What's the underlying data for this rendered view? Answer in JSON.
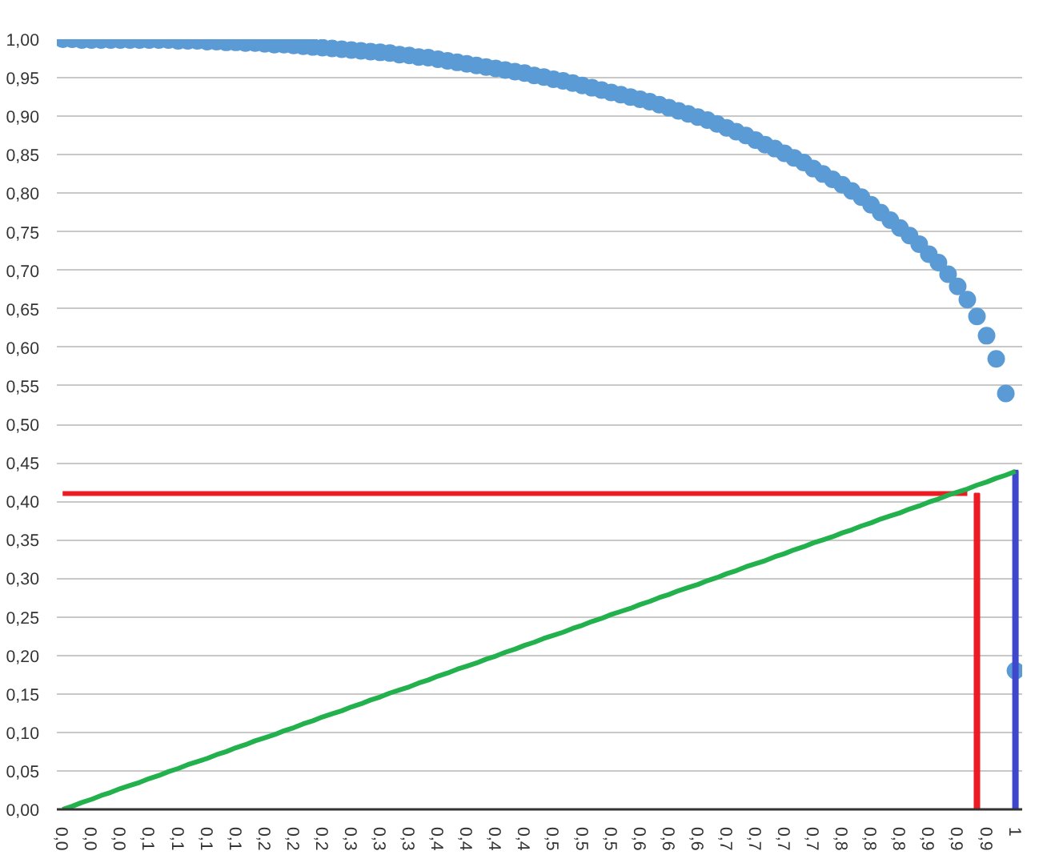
{
  "chart_data": {
    "type": "scatter",
    "ylim": [
      0,
      1
    ],
    "categories": [
      "0,0",
      null,
      null,
      "0,0",
      null,
      null,
      "0,0",
      null,
      null,
      "0,1",
      null,
      null,
      "0,1",
      null,
      null,
      "0,1",
      null,
      null,
      "0,1",
      null,
      null,
      "0,2",
      null,
      null,
      "0,2",
      null,
      null,
      "0,2",
      null,
      null,
      "0,3",
      null,
      null,
      "0,3",
      null,
      null,
      "0,3",
      null,
      null,
      "0,4",
      null,
      null,
      "0,4",
      null,
      null,
      "0,4",
      null,
      null,
      "0,4",
      null,
      null,
      "0,5",
      null,
      null,
      "0,5",
      null,
      null,
      "0,5",
      null,
      null,
      "0,6",
      null,
      null,
      "0,6",
      null,
      null,
      "0,6",
      null,
      null,
      "0,7",
      null,
      null,
      "0,7",
      null,
      null,
      "0,7",
      null,
      null,
      "0,7",
      null,
      null,
      "0,8",
      null,
      null,
      "0,8",
      null,
      null,
      "0,8",
      null,
      null,
      "0,9",
      null,
      null,
      "0,9",
      null,
      null,
      "0,9",
      null,
      null,
      "1"
    ],
    "yticks": [
      {
        "value": 0,
        "label": "0,00"
      },
      {
        "value": 0.05,
        "label": "0,05"
      },
      {
        "value": 0.1,
        "label": "0,10"
      },
      {
        "value": 0.15,
        "label": "0,15"
      },
      {
        "value": 0.2,
        "label": "0,20"
      },
      {
        "value": 0.25,
        "label": "0,25"
      },
      {
        "value": 0.3,
        "label": "0,30"
      },
      {
        "value": 0.35,
        "label": "0,35"
      },
      {
        "value": 0.4,
        "label": "0,40"
      },
      {
        "value": 0.45,
        "label": "0,45"
      },
      {
        "value": 0.5,
        "label": "0,50"
      },
      {
        "value": 0.55,
        "label": "0,55"
      },
      {
        "value": 0.6,
        "label": "0,60"
      },
      {
        "value": 0.65,
        "label": "0,65"
      },
      {
        "value": 0.7,
        "label": "0,70"
      },
      {
        "value": 0.75,
        "label": "0,75"
      },
      {
        "value": 0.8,
        "label": "0,80"
      },
      {
        "value": 0.85,
        "label": "0,85"
      },
      {
        "value": 0.9,
        "label": "0,90"
      },
      {
        "value": 0.95,
        "label": "0,95"
      },
      {
        "value": 1,
        "label": "1,00"
      }
    ],
    "grid": "y",
    "line_style": "solid",
    "series": [
      {
        "color": "#5b9bd5",
        "marker": "circle",
        "values": [
          1.0,
          1.0,
          0.999,
          0.999,
          0.999,
          0.999,
          0.999,
          0.999,
          0.999,
          0.999,
          0.999,
          0.999,
          0.998,
          0.998,
          0.998,
          0.997,
          0.997,
          0.996,
          0.996,
          0.995,
          0.995,
          0.994,
          0.993,
          0.993,
          0.992,
          0.991,
          0.99,
          0.989,
          0.988,
          0.987,
          0.986,
          0.985,
          0.984,
          0.983,
          0.982,
          0.98,
          0.979,
          0.977,
          0.976,
          0.974,
          0.972,
          0.97,
          0.968,
          0.966,
          0.964,
          0.962,
          0.96,
          0.958,
          0.956,
          0.953,
          0.951,
          0.948,
          0.946,
          0.943,
          0.94,
          0.937,
          0.934,
          0.931,
          0.928,
          0.925,
          0.922,
          0.919,
          0.915,
          0.911,
          0.907,
          0.903,
          0.899,
          0.895,
          0.89,
          0.885,
          0.88,
          0.875,
          0.869,
          0.863,
          0.858,
          0.852,
          0.846,
          0.84,
          0.832,
          0.825,
          0.818,
          0.811,
          0.803,
          0.795,
          0.785,
          0.775,
          0.765,
          0.755,
          0.745,
          0.734,
          0.721,
          0.71,
          0.695,
          0.679,
          0.662,
          0.64,
          0.615,
          0.585,
          0.54,
          0.18
        ]
      },
      {
        "type": "line",
        "color": "#ed1c24",
        "values": [
          0.41,
          0.41,
          0.41,
          0.41,
          0.41,
          0.41,
          0.41,
          0.41,
          0.41,
          0.41,
          0.41,
          0.41,
          0.41,
          0.41,
          0.41,
          0.41,
          0.41,
          0.41,
          0.41,
          0.41,
          0.41,
          0.41,
          0.41,
          0.41,
          0.41,
          0.41,
          0.41,
          0.41,
          0.41,
          0.41,
          0.41,
          0.41,
          0.41,
          0.41,
          0.41,
          0.41,
          0.41,
          0.41,
          0.41,
          0.41,
          0.41,
          0.41,
          0.41,
          0.41,
          0.41,
          0.41,
          0.41,
          0.41,
          0.41,
          0.41,
          0.41,
          0.41,
          0.41,
          0.41,
          0.41,
          0.41,
          0.41,
          0.41,
          0.41,
          0.41,
          0.41,
          0.41,
          0.41,
          0.41,
          0.41,
          0.41,
          0.41,
          0.41,
          0.41,
          0.41,
          0.41,
          0.41,
          0.41,
          0.41,
          0.41,
          0.41,
          0.41,
          0.41,
          0.41,
          0.41,
          0.41,
          0.41,
          0.41,
          0.41,
          0.41,
          0.41,
          0.41,
          0.41,
          0.41,
          0.41,
          0.41,
          0.41,
          0.41,
          0.41,
          0.41,
          null,
          null,
          null,
          null,
          null
        ]
      },
      {
        "type": "bar",
        "color": "#ed1c24",
        "values": [
          null,
          null,
          null,
          null,
          null,
          null,
          null,
          null,
          null,
          null,
          null,
          null,
          null,
          null,
          null,
          null,
          null,
          null,
          null,
          null,
          null,
          null,
          null,
          null,
          null,
          null,
          null,
          null,
          null,
          null,
          null,
          null,
          null,
          null,
          null,
          null,
          null,
          null,
          null,
          null,
          null,
          null,
          null,
          null,
          null,
          null,
          null,
          null,
          null,
          null,
          null,
          null,
          null,
          null,
          null,
          null,
          null,
          null,
          null,
          null,
          null,
          null,
          null,
          null,
          null,
          null,
          null,
          null,
          null,
          null,
          null,
          null,
          null,
          null,
          null,
          null,
          null,
          null,
          null,
          null,
          null,
          null,
          null,
          null,
          null,
          null,
          null,
          null,
          null,
          null,
          null,
          null,
          null,
          null,
          null,
          0.41,
          null,
          null,
          null,
          null
        ]
      },
      {
        "type": "bar",
        "color": "#3f48cc",
        "values": [
          null,
          null,
          null,
          null,
          null,
          null,
          null,
          null,
          null,
          null,
          null,
          null,
          null,
          null,
          null,
          null,
          null,
          null,
          null,
          null,
          null,
          null,
          null,
          null,
          null,
          null,
          null,
          null,
          null,
          null,
          null,
          null,
          null,
          null,
          null,
          null,
          null,
          null,
          null,
          null,
          null,
          null,
          null,
          null,
          null,
          null,
          null,
          null,
          null,
          null,
          null,
          null,
          null,
          null,
          null,
          null,
          null,
          null,
          null,
          null,
          null,
          null,
          null,
          null,
          null,
          null,
          null,
          null,
          null,
          null,
          null,
          null,
          null,
          null,
          null,
          null,
          null,
          null,
          null,
          null,
          null,
          null,
          null,
          null,
          null,
          null,
          null,
          null,
          null,
          null,
          null,
          null,
          null,
          null,
          null,
          null,
          null,
          null,
          null,
          0.44
        ]
      },
      {
        "type": "line",
        "color": "#22b14c",
        "values": [
          0,
          0.004,
          0.009,
          0.013,
          0.018,
          0.022,
          0.027,
          0.031,
          0.035,
          0.04,
          0.044,
          0.049,
          0.053,
          0.058,
          0.062,
          0.066,
          0.071,
          0.075,
          0.08,
          0.084,
          0.089,
          0.093,
          0.097,
          0.102,
          0.106,
          0.111,
          0.115,
          0.12,
          0.124,
          0.128,
          0.133,
          0.137,
          0.142,
          0.146,
          0.151,
          0.155,
          0.159,
          0.164,
          0.168,
          0.173,
          0.177,
          0.182,
          0.186,
          0.19,
          0.195,
          0.199,
          0.204,
          0.208,
          0.213,
          0.217,
          0.222,
          0.226,
          0.23,
          0.235,
          0.239,
          0.244,
          0.248,
          0.253,
          0.257,
          0.261,
          0.266,
          0.27,
          0.275,
          0.279,
          0.284,
          0.288,
          0.292,
          0.297,
          0.301,
          0.306,
          0.31,
          0.315,
          0.319,
          0.323,
          0.328,
          0.332,
          0.337,
          0.341,
          0.346,
          0.35,
          0.354,
          0.359,
          0.363,
          0.368,
          0.372,
          0.377,
          0.381,
          0.385,
          0.39,
          0.394,
          0.399,
          0.403,
          0.408,
          0.412,
          0.416,
          0.421,
          0.425,
          0.43,
          0.434,
          0.439
        ]
      }
    ]
  }
}
